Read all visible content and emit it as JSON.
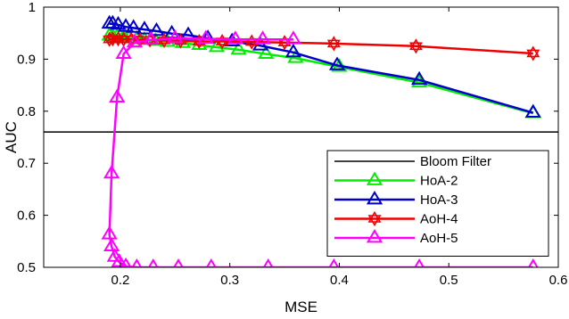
{
  "chart_data": {
    "type": "line",
    "xlabel": "MSE",
    "ylabel": "AUC",
    "xlim": [
      0.13,
      0.6
    ],
    "ylim": [
      0.5,
      1.0
    ],
    "xticks": [
      0.2,
      0.3,
      0.4,
      0.5,
      0.6
    ],
    "xtick_labels": [
      "0.2",
      "0.3",
      "0.4",
      "0.5",
      "0.6"
    ],
    "yticks": [
      0.5,
      0.6,
      0.7,
      0.8,
      0.9,
      1.0
    ],
    "ytick_labels": [
      "0.5",
      "0.6",
      "0.7",
      "0.8",
      "0.9",
      "1"
    ],
    "grid": false,
    "legend_position": "lower-right",
    "baseline": {
      "name": "Bloom Filter",
      "value": 0.76,
      "color": "#000000"
    },
    "series": [
      {
        "name": "HoA-2",
        "color": "#00ee00",
        "marker": "triangle",
        "x": [
          0.19,
          0.193,
          0.197,
          0.203,
          0.208,
          0.215,
          0.222,
          0.232,
          0.243,
          0.257,
          0.272,
          0.288,
          0.308,
          0.333,
          0.36,
          0.4,
          0.473,
          0.577
        ],
        "y": [
          0.945,
          0.944,
          0.943,
          0.942,
          0.94,
          0.939,
          0.937,
          0.935,
          0.933,
          0.931,
          0.927,
          0.923,
          0.918,
          0.91,
          0.902,
          0.885,
          0.855,
          0.796
        ]
      },
      {
        "name": "HoA-3",
        "color": "#0000cc",
        "marker": "triangle",
        "x": [
          0.19,
          0.193,
          0.198,
          0.205,
          0.212,
          0.222,
          0.233,
          0.247,
          0.262,
          0.28,
          0.302,
          0.328,
          0.358,
          0.398,
          0.473,
          0.577
        ],
        "y": [
          0.968,
          0.968,
          0.966,
          0.962,
          0.96,
          0.957,
          0.954,
          0.949,
          0.946,
          0.94,
          0.934,
          0.926,
          0.913,
          0.888,
          0.86,
          0.797
        ]
      },
      {
        "name": "AoH-4",
        "color": "#ee0000",
        "marker": "hexagram",
        "x": [
          0.19,
          0.193,
          0.198,
          0.203,
          0.21,
          0.218,
          0.227,
          0.24,
          0.255,
          0.272,
          0.293,
          0.32,
          0.35,
          0.395,
          0.47,
          0.577
        ],
        "y": [
          0.938,
          0.939,
          0.939,
          0.938,
          0.938,
          0.937,
          0.937,
          0.936,
          0.935,
          0.934,
          0.934,
          0.933,
          0.932,
          0.93,
          0.925,
          0.911
        ]
      },
      {
        "name": "AoH-5",
        "color": "#ff00ff",
        "marker": "triangle",
        "x": [
          0.577,
          0.473,
          0.395,
          0.335,
          0.283,
          0.253,
          0.23,
          0.215,
          0.205,
          0.199,
          0.195,
          0.192,
          0.19,
          0.192,
          0.197,
          0.203,
          0.213,
          0.228,
          0.25,
          0.278,
          0.305,
          0.33,
          0.358
        ],
        "y": [
          0.5,
          0.5,
          0.5,
          0.5,
          0.5,
          0.5,
          0.5,
          0.5,
          0.502,
          0.51,
          0.52,
          0.54,
          0.563,
          0.68,
          0.826,
          0.91,
          0.932,
          0.937,
          0.94,
          0.939,
          0.938,
          0.938,
          0.938
        ]
      }
    ]
  }
}
